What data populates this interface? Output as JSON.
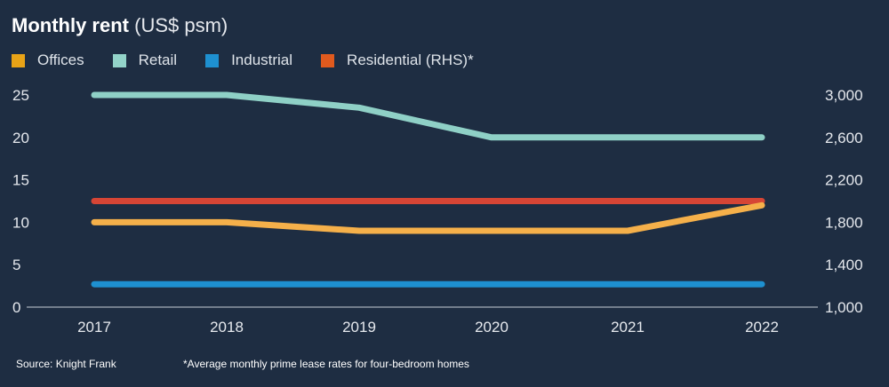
{
  "title": {
    "bold": "Monthly rent",
    "unit": "(US$ psm)"
  },
  "legend": [
    {
      "label": "Offices",
      "color": "#e8a317"
    },
    {
      "label": "Retail",
      "color": "#93d3c9"
    },
    {
      "label": "Industrial",
      "color": "#1e90d0"
    },
    {
      "label": "Residential (RHS)*",
      "color": "#e05a1e"
    }
  ],
  "footer": {
    "source": "Source: Knight Frank",
    "note": "*Average monthly prime lease rates for four-bedroom homes"
  },
  "chart_data": {
    "type": "line",
    "categories": [
      "2017",
      "2018",
      "2019",
      "2020",
      "2021",
      "2022"
    ],
    "y_left": {
      "range": [
        0,
        25
      ],
      "ticks": [
        "0",
        "5",
        "10",
        "15",
        "20",
        "25"
      ]
    },
    "y_right": {
      "range": [
        1000,
        3000
      ],
      "ticks": [
        "1,000",
        "1,400",
        "1,800",
        "2,200",
        "2,600",
        "3,000"
      ]
    },
    "grid": false,
    "legend_position": "top-left",
    "series": [
      {
        "name": "Retail",
        "axis": "left",
        "color": "#8fd0c6",
        "values": [
          25,
          25,
          23.5,
          20,
          20,
          20
        ]
      },
      {
        "name": "Residential (RHS)*",
        "axis": "right",
        "color": "#d64535",
        "values": [
          2000,
          2000,
          2000,
          2000,
          2000,
          2000
        ]
      },
      {
        "name": "Offices",
        "axis": "left",
        "color": "#f5b04a",
        "values": [
          10,
          10,
          9,
          9,
          9,
          12
        ]
      },
      {
        "name": "Industrial",
        "axis": "left",
        "color": "#1e90d0",
        "values": [
          2.7,
          2.7,
          2.7,
          2.7,
          2.7,
          2.7
        ]
      }
    ]
  }
}
